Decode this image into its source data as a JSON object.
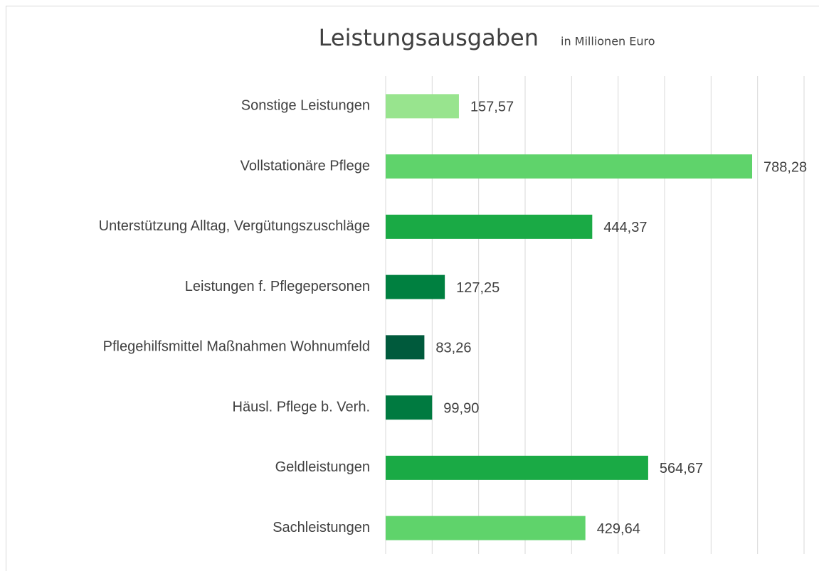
{
  "chart_data": {
    "type": "barh",
    "title": "Leistungsausgaben",
    "subtitle": "in Millionen Euro",
    "categories": [
      "Sonstige Leistungen",
      "Vollstationäre Pflege",
      "Unterstützung Alltag, Vergütungszuschläge",
      "Leistungen f. Pflegepersonen",
      "Pflegehilfsmittel Maßnahmen Wohnumfeld",
      "Häusl. Pflege b. Verh.",
      "Geldleistungen",
      "Sachleistungen"
    ],
    "values": [
      157.57,
      788.28,
      444.37,
      127.25,
      83.26,
      99.9,
      564.67,
      429.64
    ],
    "value_labels": [
      "157,57",
      "788,28",
      "444,37",
      "127,25",
      "83,26",
      "99,90",
      "564,67",
      "429,64"
    ],
    "colors": [
      "#98e48e",
      "#5fd36b",
      "#1aaa45",
      "#008040",
      "#005a3c",
      "#007a40",
      "#1aaa45",
      "#5fd36b"
    ],
    "xlim": [
      0,
      900
    ],
    "xticks": [
      0,
      100,
      200,
      300,
      400,
      500,
      600,
      700,
      800,
      900
    ],
    "grid": true
  }
}
